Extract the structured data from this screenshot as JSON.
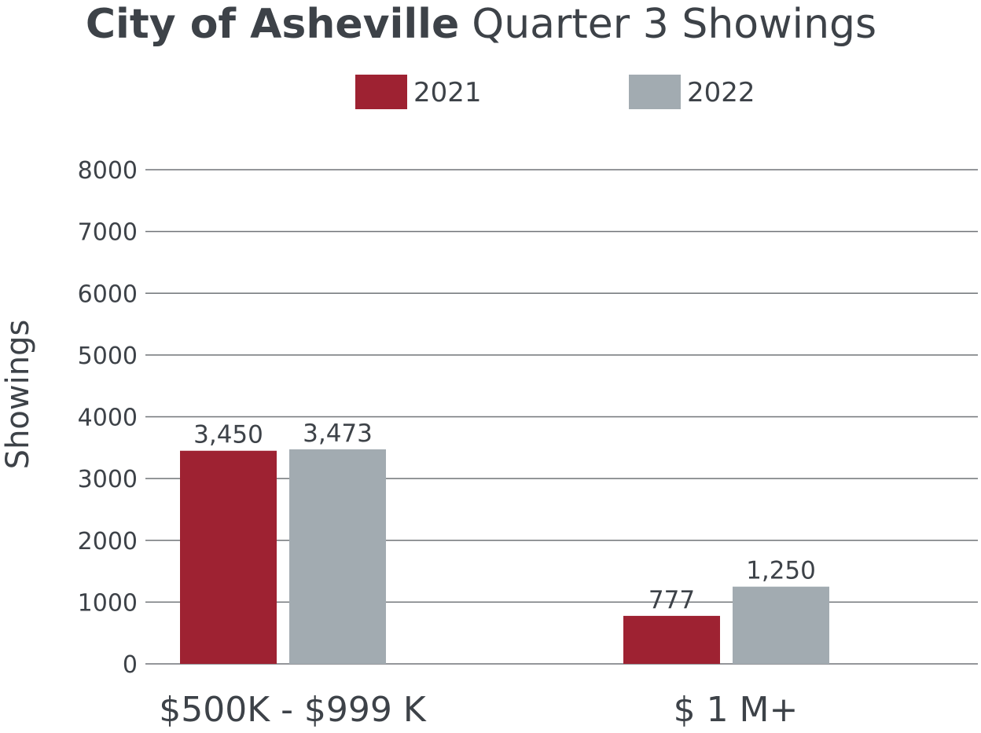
{
  "chart_data": {
    "type": "bar",
    "title_strong": "City of Asheville",
    "title_rest": "Quarter 3 Showings",
    "xlabel": "",
    "ylabel": "Showings",
    "ylim": [
      0,
      8000
    ],
    "yticks": [
      0,
      1000,
      2000,
      3000,
      4000,
      5000,
      6000,
      7000,
      8000
    ],
    "grid": true,
    "legend_position": "top",
    "categories": [
      "$500K - $999 K",
      "$ 1 M+"
    ],
    "series": [
      {
        "name": "2021",
        "color": "#9e2232",
        "values": [
          3450,
          777
        ],
        "labels": [
          "3,450",
          "777"
        ]
      },
      {
        "name": "2022",
        "color": "#a2abb1",
        "values": [
          3473,
          1250
        ],
        "labels": [
          "3,473",
          "1,250"
        ]
      }
    ]
  }
}
